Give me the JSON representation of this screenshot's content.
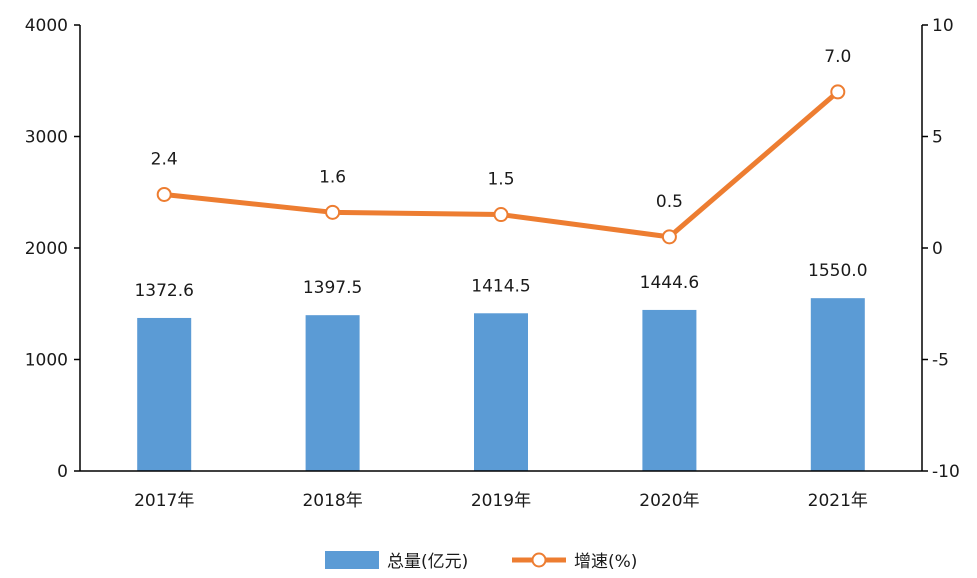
{
  "chart_data": {
    "type": "bar",
    "categories": [
      "2017年",
      "2018年",
      "2019年",
      "2020年",
      "2021年"
    ],
    "series": [
      {
        "name": "总量(亿元)",
        "type": "bar",
        "axis": "left",
        "values": [
          1372.6,
          1397.5,
          1414.5,
          1444.6,
          1550.0
        ],
        "labels": [
          "1372.6",
          "1397.5",
          "1414.5",
          "1444.6",
          "1550.0"
        ],
        "color": "#5B9BD5"
      },
      {
        "name": "增速(%)",
        "type": "line",
        "axis": "right",
        "values": [
          2.4,
          1.6,
          1.5,
          0.5,
          7.0
        ],
        "labels": [
          "2.4",
          "1.6",
          "1.5",
          "0.5",
          "7.0"
        ],
        "color": "#ED7D31"
      }
    ],
    "y_left": {
      "min": 0,
      "max": 4000,
      "ticks": [
        0,
        1000,
        2000,
        3000,
        4000
      ]
    },
    "y_right": {
      "min": -10,
      "max": 10,
      "ticks": [
        -10,
        -5,
        0,
        5,
        10
      ]
    },
    "grid": false,
    "legend": "bottom-center"
  }
}
